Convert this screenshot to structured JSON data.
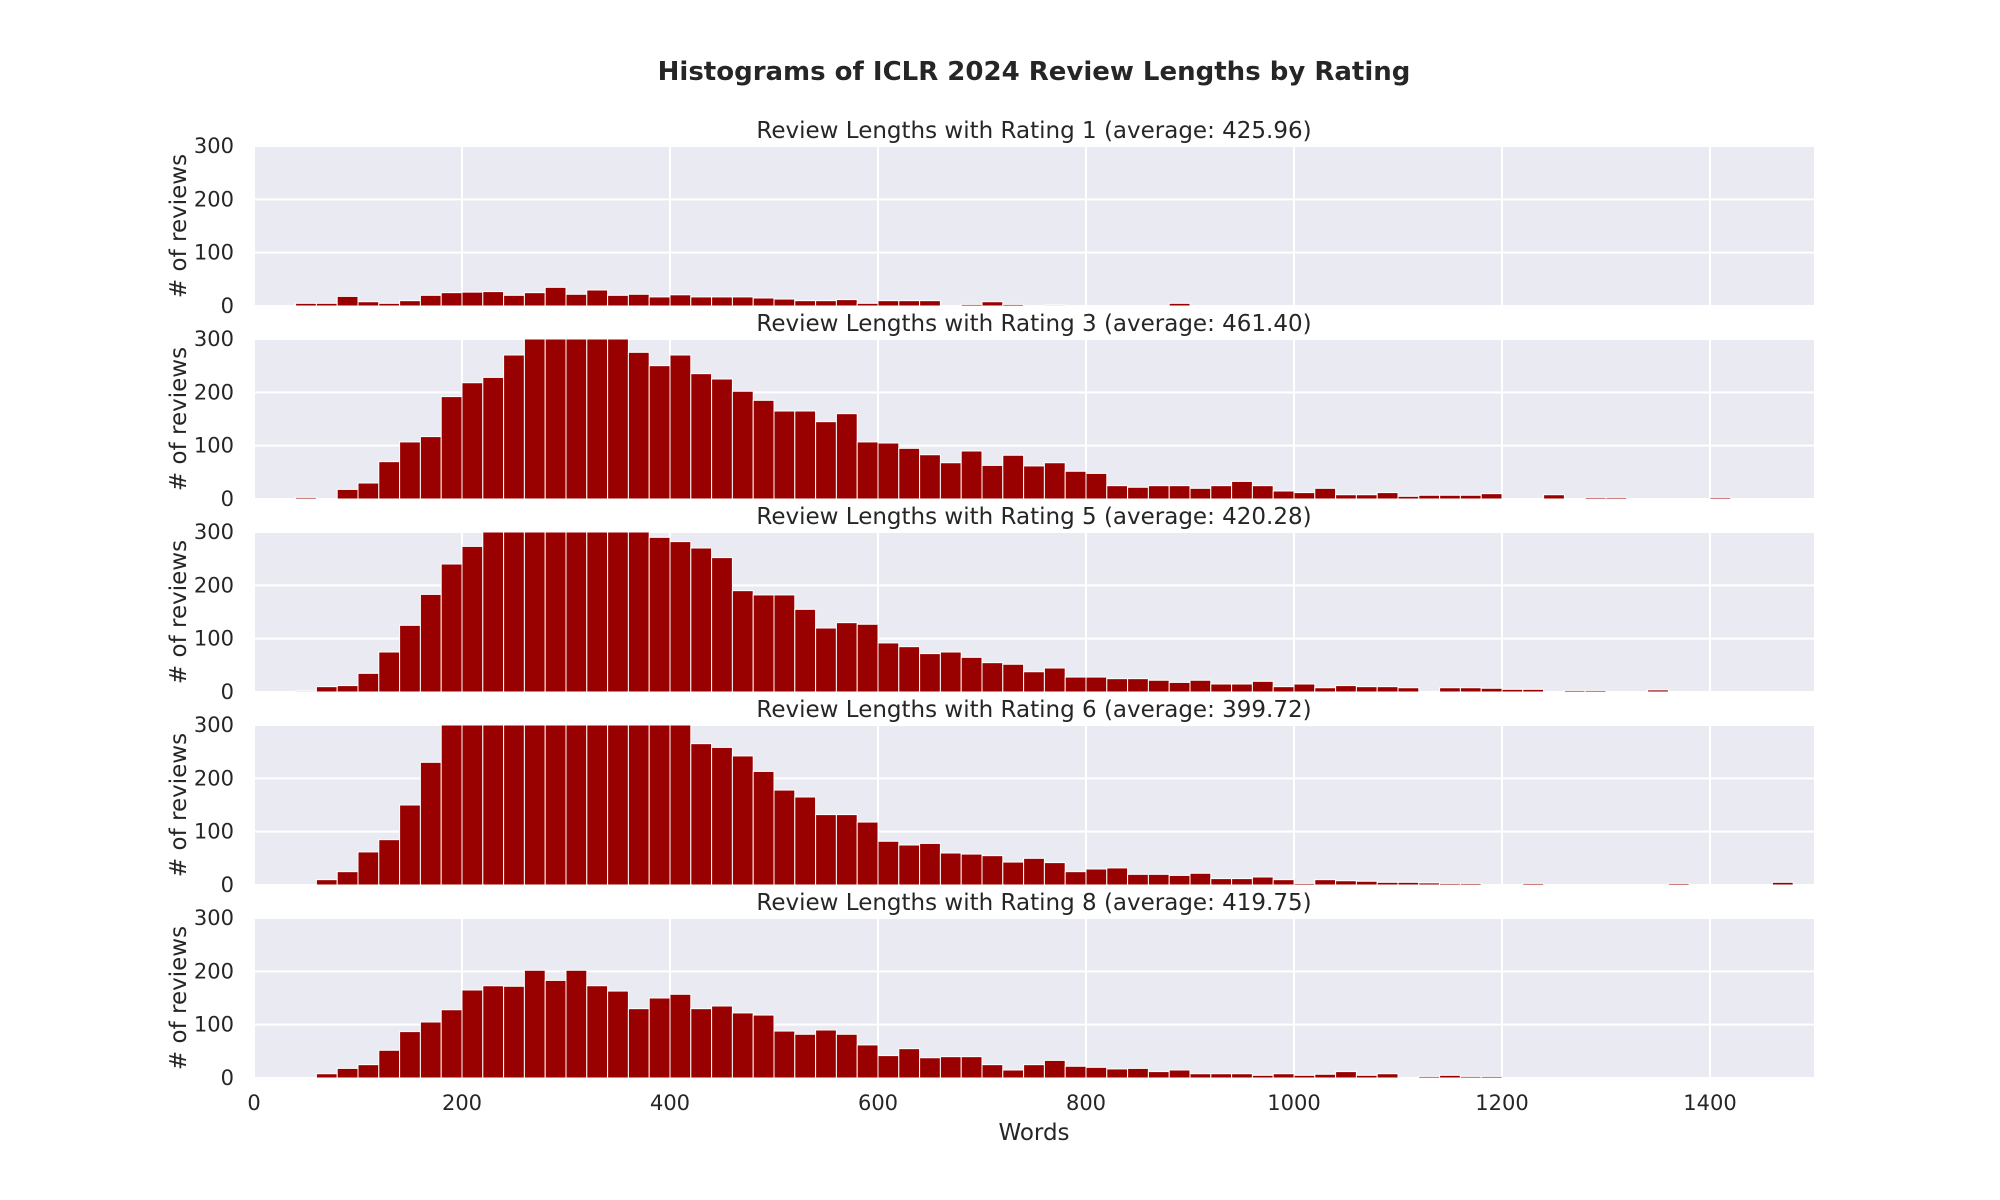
{
  "chart_data": {
    "type": "bar",
    "title": "Histograms of ICLR 2024 Review Lengths by Rating",
    "xlabel": "Words",
    "ylabel": "# of reviews",
    "xlim": [
      0,
      1500
    ],
    "ylim": [
      0,
      300
    ],
    "x_ticks": [
      "0",
      "200",
      "400",
      "600",
      "800",
      "1000",
      "1200",
      "1400"
    ],
    "y_ticks": [
      "0",
      "100",
      "200",
      "300"
    ],
    "bin_start": 0,
    "bin_width": 20,
    "grid": true,
    "bar_color": "#990000",
    "background_color": "#EAEAF2",
    "grid_color": "#FFFFFF",
    "panels": [
      {
        "title": "Review Lengths with Rating 1 (average: 425.96)",
        "values": [
          0,
          0,
          5,
          5,
          18,
          8,
          5,
          10,
          20,
          25,
          26,
          27,
          20,
          25,
          35,
          22,
          30,
          20,
          22,
          17,
          21,
          17,
          17,
          17,
          15,
          13,
          10,
          10,
          12,
          5,
          10,
          10,
          10,
          0,
          3,
          8,
          3,
          0,
          2,
          0,
          0,
          0,
          0,
          0,
          5,
          0,
          0,
          0,
          0,
          0,
          0,
          0,
          0,
          0,
          0,
          0,
          0,
          0,
          0,
          0,
          0,
          0,
          0,
          0,
          0,
          0,
          0,
          0,
          0,
          0,
          0,
          0,
          0,
          0,
          0
        ]
      },
      {
        "title": "Review Lengths with Rating 3 (average: 461.40)",
        "values": [
          0,
          0,
          3,
          0,
          18,
          30,
          70,
          107,
          117,
          192,
          218,
          228,
          270,
          300,
          300,
          300,
          300,
          300,
          275,
          250,
          270,
          235,
          225,
          202,
          185,
          165,
          165,
          145,
          160,
          107,
          105,
          95,
          83,
          68,
          90,
          63,
          82,
          62,
          68,
          52,
          48,
          25,
          22,
          25,
          25,
          20,
          25,
          33,
          25,
          15,
          12,
          20,
          8,
          8,
          12,
          5,
          7,
          7,
          7,
          10,
          0,
          0,
          8,
          0,
          3,
          3,
          0,
          0,
          0,
          0,
          3,
          0,
          0,
          0,
          0
        ]
      },
      {
        "title": "Review Lengths with Rating 5 (average: 420.28)",
        "values": [
          0,
          0,
          2,
          10,
          12,
          35,
          75,
          125,
          183,
          240,
          273,
          300,
          300,
          300,
          300,
          300,
          300,
          300,
          300,
          290,
          282,
          270,
          252,
          190,
          182,
          182,
          155,
          120,
          130,
          127,
          92,
          85,
          72,
          75,
          65,
          55,
          52,
          38,
          45,
          28,
          28,
          25,
          25,
          22,
          18,
          22,
          15,
          15,
          20,
          10,
          15,
          8,
          12,
          10,
          10,
          8,
          0,
          8,
          8,
          7,
          5,
          5,
          0,
          3,
          3,
          0,
          0,
          4,
          0,
          0,
          0,
          0,
          0,
          0,
          0
        ]
      },
      {
        "title": "Review Lengths with Rating 6 (average: 399.72)",
        "values": [
          0,
          0,
          0,
          10,
          25,
          62,
          85,
          150,
          230,
          300,
          300,
          300,
          300,
          300,
          300,
          300,
          300,
          300,
          300,
          300,
          300,
          265,
          258,
          242,
          213,
          178,
          165,
          132,
          132,
          118,
          82,
          75,
          78,
          60,
          58,
          55,
          43,
          50,
          42,
          25,
          30,
          32,
          20,
          20,
          18,
          22,
          12,
          12,
          15,
          10,
          3,
          10,
          8,
          7,
          5,
          5,
          4,
          3,
          3,
          0,
          0,
          3,
          0,
          0,
          0,
          0,
          0,
          0,
          3,
          0,
          0,
          0,
          0,
          5,
          0
        ]
      },
      {
        "title": "Review Lengths with Rating 8 (average: 419.75)",
        "values": [
          0,
          0,
          0,
          8,
          18,
          25,
          52,
          87,
          105,
          128,
          165,
          173,
          172,
          202,
          183,
          202,
          173,
          163,
          130,
          150,
          157,
          130,
          135,
          122,
          118,
          88,
          82,
          90,
          82,
          62,
          42,
          55,
          38,
          40,
          40,
          25,
          15,
          25,
          33,
          22,
          20,
          17,
          18,
          12,
          15,
          8,
          8,
          8,
          5,
          8,
          5,
          7,
          12,
          5,
          8,
          0,
          3,
          5,
          3,
          3,
          0,
          0,
          0,
          0,
          0,
          0,
          0,
          0,
          0,
          0,
          0,
          0,
          0,
          0,
          0
        ]
      }
    ]
  }
}
